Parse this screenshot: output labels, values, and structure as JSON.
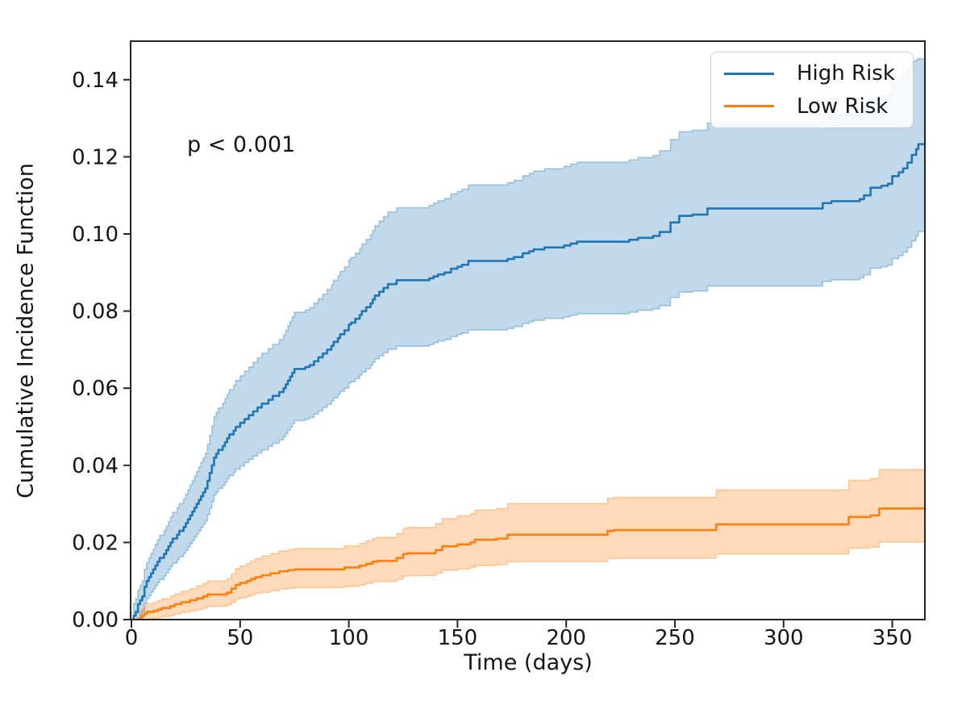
{
  "chart_data": {
    "type": "line",
    "subtype": "step-cumulative-incidence-with-confidence-bands",
    "title": "",
    "xlabel": "Time (days)",
    "ylabel": "Cumulative Incidence Function",
    "annotation": "p < 0.001",
    "grid": false,
    "legend_position": "upper right",
    "xlim": [
      0,
      365
    ],
    "ylim": [
      0,
      0.15
    ],
    "x_ticks": [
      0,
      50,
      100,
      150,
      200,
      250,
      300,
      350
    ],
    "y_ticks": [
      "0.00",
      "0.02",
      "0.04",
      "0.06",
      "0.08",
      "0.10",
      "0.12",
      "0.14"
    ],
    "axis_color": "#262626",
    "text_color": "#151515",
    "series": [
      {
        "name": "High Risk",
        "color": "#1f77b4",
        "band_color": "#1f77b4",
        "band_opacity": 0.28,
        "points_format": [
          "time_days",
          "cif",
          "ci_lower",
          "ci_upper"
        ],
        "points": [
          [
            0,
            0,
            0,
            0
          ],
          [
            1,
            0.001,
            0,
            0.0042
          ],
          [
            2,
            0.002,
            0,
            0.0054
          ],
          [
            3,
            0.004,
            0.0004,
            0.0077
          ],
          [
            4,
            0.005,
            0.0012,
            0.0089
          ],
          [
            5,
            0.006,
            0.002,
            0.0101
          ],
          [
            6,
            0.0085,
            0.0041,
            0.013
          ],
          [
            7,
            0.01,
            0.0054,
            0.0148
          ],
          [
            8,
            0.011,
            0.0062,
            0.016
          ],
          [
            9,
            0.012,
            0.0071,
            0.0172
          ],
          [
            10,
            0.013,
            0.0079,
            0.0183
          ],
          [
            11,
            0.014,
            0.0088,
            0.0195
          ],
          [
            12,
            0.015,
            0.0096,
            0.0207
          ],
          [
            13,
            0.016,
            0.0104,
            0.0219
          ],
          [
            15,
            0.017,
            0.0113,
            0.0231
          ],
          [
            16,
            0.018,
            0.0121,
            0.0242
          ],
          [
            17,
            0.019,
            0.013,
            0.0254
          ],
          [
            18,
            0.02,
            0.0138,
            0.0266
          ],
          [
            19,
            0.021,
            0.0146,
            0.0278
          ],
          [
            21,
            0.022,
            0.0155,
            0.029
          ],
          [
            22,
            0.023,
            0.0163,
            0.0301
          ],
          [
            24,
            0.024,
            0.0172,
            0.0313
          ],
          [
            25,
            0.025,
            0.018,
            0.0325
          ],
          [
            26,
            0.026,
            0.0188,
            0.0337
          ],
          [
            27,
            0.027,
            0.0197,
            0.0349
          ],
          [
            28,
            0.028,
            0.0205,
            0.036
          ],
          [
            29,
            0.029,
            0.0214,
            0.0372
          ],
          [
            30,
            0.03,
            0.0222,
            0.0384
          ],
          [
            31,
            0.031,
            0.023,
            0.0396
          ],
          [
            32,
            0.032,
            0.0239,
            0.0408
          ],
          [
            33,
            0.033,
            0.0247,
            0.0419
          ],
          [
            34,
            0.034,
            0.0256,
            0.0431
          ],
          [
            35,
            0.036,
            0.0272,
            0.0455
          ],
          [
            36,
            0.038,
            0.0289,
            0.0478
          ],
          [
            37,
            0.04,
            0.0306,
            0.0502
          ],
          [
            38,
            0.042,
            0.0323,
            0.0526
          ],
          [
            39,
            0.043,
            0.0331,
            0.0537
          ],
          [
            40,
            0.044,
            0.034,
            0.0549
          ],
          [
            42,
            0.045,
            0.0348,
            0.0561
          ],
          [
            43,
            0.046,
            0.0356,
            0.0573
          ],
          [
            44,
            0.047,
            0.0365,
            0.0585
          ],
          [
            45,
            0.048,
            0.0373,
            0.0596
          ],
          [
            47,
            0.049,
            0.0382,
            0.0608
          ],
          [
            48,
            0.05,
            0.039,
            0.062
          ],
          [
            50,
            0.051,
            0.0398,
            0.0632
          ],
          [
            52,
            0.052,
            0.0407,
            0.0644
          ],
          [
            54,
            0.053,
            0.0415,
            0.0655
          ],
          [
            56,
            0.054,
            0.0424,
            0.0667
          ],
          [
            58,
            0.055,
            0.0432,
            0.0679
          ],
          [
            60,
            0.056,
            0.044,
            0.0691
          ],
          [
            63,
            0.057,
            0.0449,
            0.0703
          ],
          [
            65,
            0.058,
            0.0457,
            0.0714
          ],
          [
            68,
            0.059,
            0.0466,
            0.0726
          ],
          [
            70,
            0.06,
            0.0474,
            0.0738
          ],
          [
            71,
            0.061,
            0.0482,
            0.075
          ],
          [
            72,
            0.062,
            0.0491,
            0.0762
          ],
          [
            73,
            0.063,
            0.0499,
            0.0773
          ],
          [
            74,
            0.064,
            0.0508,
            0.0785
          ],
          [
            75,
            0.065,
            0.0516,
            0.0797
          ],
          [
            80,
            0.0655,
            0.052,
            0.0803
          ],
          [
            82,
            0.066,
            0.0524,
            0.0809
          ],
          [
            84,
            0.067,
            0.0533,
            0.0821
          ],
          [
            86,
            0.068,
            0.0541,
            0.0832
          ],
          [
            88,
            0.069,
            0.055,
            0.0844
          ],
          [
            90,
            0.07,
            0.0558,
            0.0856
          ],
          [
            92,
            0.071,
            0.0566,
            0.0868
          ],
          [
            93,
            0.072,
            0.0575,
            0.088
          ],
          [
            95,
            0.073,
            0.0583,
            0.0891
          ],
          [
            96,
            0.074,
            0.0592,
            0.0903
          ],
          [
            98,
            0.075,
            0.06,
            0.0915
          ],
          [
            100,
            0.0765,
            0.0613,
            0.0933
          ],
          [
            101,
            0.077,
            0.0617,
            0.0939
          ],
          [
            103,
            0.078,
            0.0625,
            0.095
          ],
          [
            105,
            0.079,
            0.0634,
            0.0962
          ],
          [
            106,
            0.08,
            0.0642,
            0.0974
          ],
          [
            108,
            0.081,
            0.065,
            0.0986
          ],
          [
            110,
            0.082,
            0.0659,
            0.0998
          ],
          [
            111,
            0.083,
            0.0667,
            0.1009
          ],
          [
            112,
            0.084,
            0.0676,
            0.1021
          ],
          [
            114,
            0.085,
            0.0684,
            0.1033
          ],
          [
            116,
            0.086,
            0.0692,
            0.1045
          ],
          [
            118,
            0.087,
            0.0701,
            0.1057
          ],
          [
            122,
            0.088,
            0.0709,
            0.1068
          ],
          [
            137,
            0.0885,
            0.0713,
            0.1074
          ],
          [
            139,
            0.089,
            0.0718,
            0.108
          ],
          [
            141,
            0.0895,
            0.0722,
            0.1086
          ],
          [
            144,
            0.09,
            0.0726,
            0.1092
          ],
          [
            147,
            0.091,
            0.0734,
            0.1104
          ],
          [
            150,
            0.0915,
            0.0739,
            0.111
          ],
          [
            152,
            0.092,
            0.0743,
            0.1116
          ],
          [
            155,
            0.093,
            0.0751,
            0.1127
          ],
          [
            173,
            0.0935,
            0.0755,
            0.1133
          ],
          [
            176,
            0.094,
            0.076,
            0.1139
          ],
          [
            180,
            0.095,
            0.0768,
            0.1151
          ],
          [
            183,
            0.0955,
            0.0772,
            0.1157
          ],
          [
            185,
            0.096,
            0.0776,
            0.1163
          ],
          [
            190,
            0.0965,
            0.0781,
            0.1169
          ],
          [
            199,
            0.097,
            0.0785,
            0.1175
          ],
          [
            202,
            0.0975,
            0.0789,
            0.1181
          ],
          [
            205,
            0.098,
            0.0793,
            0.1186
          ],
          [
            229,
            0.0985,
            0.0797,
            0.1192
          ],
          [
            233,
            0.099,
            0.0802,
            0.1198
          ],
          [
            240,
            0.0995,
            0.0806,
            0.1204
          ],
          [
            243,
            0.1005,
            0.0814,
            0.1216
          ],
          [
            248,
            0.103,
            0.0835,
            0.1245
          ],
          [
            252,
            0.1047,
            0.0849,
            0.1265
          ],
          [
            258,
            0.105,
            0.0852,
            0.1269
          ],
          [
            265,
            0.1066,
            0.0865,
            0.1288
          ],
          [
            318,
            0.108,
            0.0877,
            0.1304
          ],
          [
            322,
            0.1085,
            0.0881,
            0.131
          ],
          [
            335,
            0.109,
            0.0886,
            0.1316
          ],
          [
            337,
            0.11,
            0.0894,
            0.1328
          ],
          [
            340,
            0.112,
            0.0911,
            0.1352
          ],
          [
            345,
            0.1125,
            0.0915,
            0.1358
          ],
          [
            348,
            0.113,
            0.0919,
            0.1363
          ],
          [
            350,
            0.115,
            0.0936,
            0.1387
          ],
          [
            353,
            0.116,
            0.0944,
            0.1399
          ],
          [
            355,
            0.117,
            0.0953,
            0.1411
          ],
          [
            357,
            0.1185,
            0.0965,
            0.1428
          ],
          [
            359,
            0.1205,
            0.0982,
            0.1448
          ],
          [
            361,
            0.122,
            0.0995,
            0.1452
          ],
          [
            362,
            0.1233,
            0.1006,
            0.1455
          ]
        ]
      },
      {
        "name": "Low Risk",
        "color": "#ff7f0e",
        "band_color": "#ff7f0e",
        "band_opacity": 0.28,
        "points_format": [
          "time_days",
          "cif",
          "ci_lower",
          "ci_upper"
        ],
        "points": [
          [
            0,
            0,
            0,
            0
          ],
          [
            4,
            0.0005,
            0,
            0.0022
          ],
          [
            5,
            0.001,
            0,
            0.0028
          ],
          [
            6,
            0.0015,
            0,
            0.0035
          ],
          [
            7,
            0.002,
            0.0001,
            0.0041
          ],
          [
            10,
            0.0022,
            0.0002,
            0.0044
          ],
          [
            12,
            0.0026,
            0.0005,
            0.0049
          ],
          [
            14,
            0.003,
            0.0008,
            0.0054
          ],
          [
            18,
            0.0035,
            0.0011,
            0.0061
          ],
          [
            20,
            0.004,
            0.0015,
            0.0067
          ],
          [
            23,
            0.0045,
            0.0019,
            0.0074
          ],
          [
            27,
            0.005,
            0.0023,
            0.008
          ],
          [
            30,
            0.0055,
            0.0026,
            0.0087
          ],
          [
            33,
            0.006,
            0.003,
            0.0093
          ],
          [
            35,
            0.0065,
            0.0034,
            0.01
          ],
          [
            44,
            0.007,
            0.0038,
            0.0106
          ],
          [
            46,
            0.008,
            0.0045,
            0.0119
          ],
          [
            48,
            0.009,
            0.0053,
            0.0132
          ],
          [
            50,
            0.0095,
            0.0056,
            0.0139
          ],
          [
            53,
            0.01,
            0.006,
            0.0145
          ],
          [
            55,
            0.0105,
            0.0064,
            0.0152
          ],
          [
            57,
            0.011,
            0.0068,
            0.0158
          ],
          [
            60,
            0.0115,
            0.0071,
            0.0165
          ],
          [
            64,
            0.012,
            0.0075,
            0.0171
          ],
          [
            68,
            0.0125,
            0.0079,
            0.0178
          ],
          [
            72,
            0.0128,
            0.0081,
            0.0181
          ],
          [
            75,
            0.013,
            0.0083,
            0.0184
          ],
          [
            98,
            0.0135,
            0.0086,
            0.0191
          ],
          [
            105,
            0.014,
            0.009,
            0.0197
          ],
          [
            108,
            0.0145,
            0.0094,
            0.0204
          ],
          [
            111,
            0.015,
            0.0098,
            0.021
          ],
          [
            113,
            0.0152,
            0.0099,
            0.0213
          ],
          [
            122,
            0.016,
            0.0105,
            0.0223
          ],
          [
            125,
            0.017,
            0.0113,
            0.0236
          ],
          [
            127,
            0.0172,
            0.0114,
            0.0239
          ],
          [
            140,
            0.018,
            0.012,
            0.0249
          ],
          [
            143,
            0.019,
            0.0128,
            0.0262
          ],
          [
            150,
            0.0195,
            0.0131,
            0.0269
          ],
          [
            156,
            0.02,
            0.0135,
            0.0275
          ],
          [
            158,
            0.0207,
            0.014,
            0.0284
          ],
          [
            168,
            0.021,
            0.0143,
            0.0288
          ],
          [
            173,
            0.022,
            0.015,
            0.0301
          ],
          [
            219,
            0.023,
            0.0158,
            0.0314
          ],
          [
            222,
            0.0232,
            0.0159,
            0.0317
          ],
          [
            269,
            0.0247,
            0.017,
            0.0336
          ],
          [
            330,
            0.0266,
            0.0185,
            0.0361
          ],
          [
            340,
            0.027,
            0.0188,
            0.0366
          ],
          [
            344,
            0.0288,
            0.0201,
            0.0389
          ],
          [
            365,
            0.029,
            0.0203,
            0.0392
          ]
        ]
      }
    ]
  }
}
